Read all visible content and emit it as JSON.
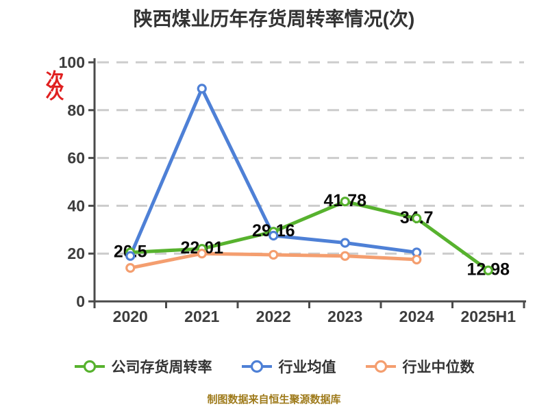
{
  "title": "陕西煤业历年存货周转率情况(次)",
  "footer_note": "制图数据来自恒生聚源数据库",
  "colors": {
    "background": "#ffffff",
    "title_text": "#333333",
    "axis": "#4a4a4a",
    "gridline": "#cccccc",
    "tick_label": "#3d3d3d",
    "point_label": "#0a0a0a",
    "footer_text": "#9e7a1a",
    "unit_label": "#e02020",
    "series_company": "#57b22e",
    "series_industry_avg": "#4e80d6",
    "series_industry_median": "#f49e6f"
  },
  "chart_data": {
    "type": "line",
    "title": "陕西煤业历年存货周转率情况(次)",
    "ylabel_unit": "次",
    "categories": [
      "2020",
      "2021",
      "2022",
      "2023",
      "2024",
      "2025H1"
    ],
    "ylim": [
      0,
      100
    ],
    "yticks": [
      0,
      20,
      40,
      60,
      80,
      100
    ],
    "grid": "horizontal-dashed",
    "legend_position": "bottom",
    "series": [
      {
        "name": "公司存货周转率",
        "color": "#57b22e",
        "values": [
          20.5,
          22.01,
          29.16,
          41.78,
          34.7,
          12.98
        ],
        "point_labels": [
          "20.5",
          "22.01",
          "29.16",
          "41.78",
          "34.7",
          "12.98"
        ]
      },
      {
        "name": "行业均值",
        "color": "#4e80d6",
        "values": [
          19,
          89,
          27.5,
          24.5,
          20.5,
          null
        ],
        "point_labels": []
      },
      {
        "name": "行业中位数",
        "color": "#f49e6f",
        "values": [
          14,
          20,
          19.5,
          19,
          17.5,
          null
        ],
        "point_labels": []
      }
    ]
  }
}
